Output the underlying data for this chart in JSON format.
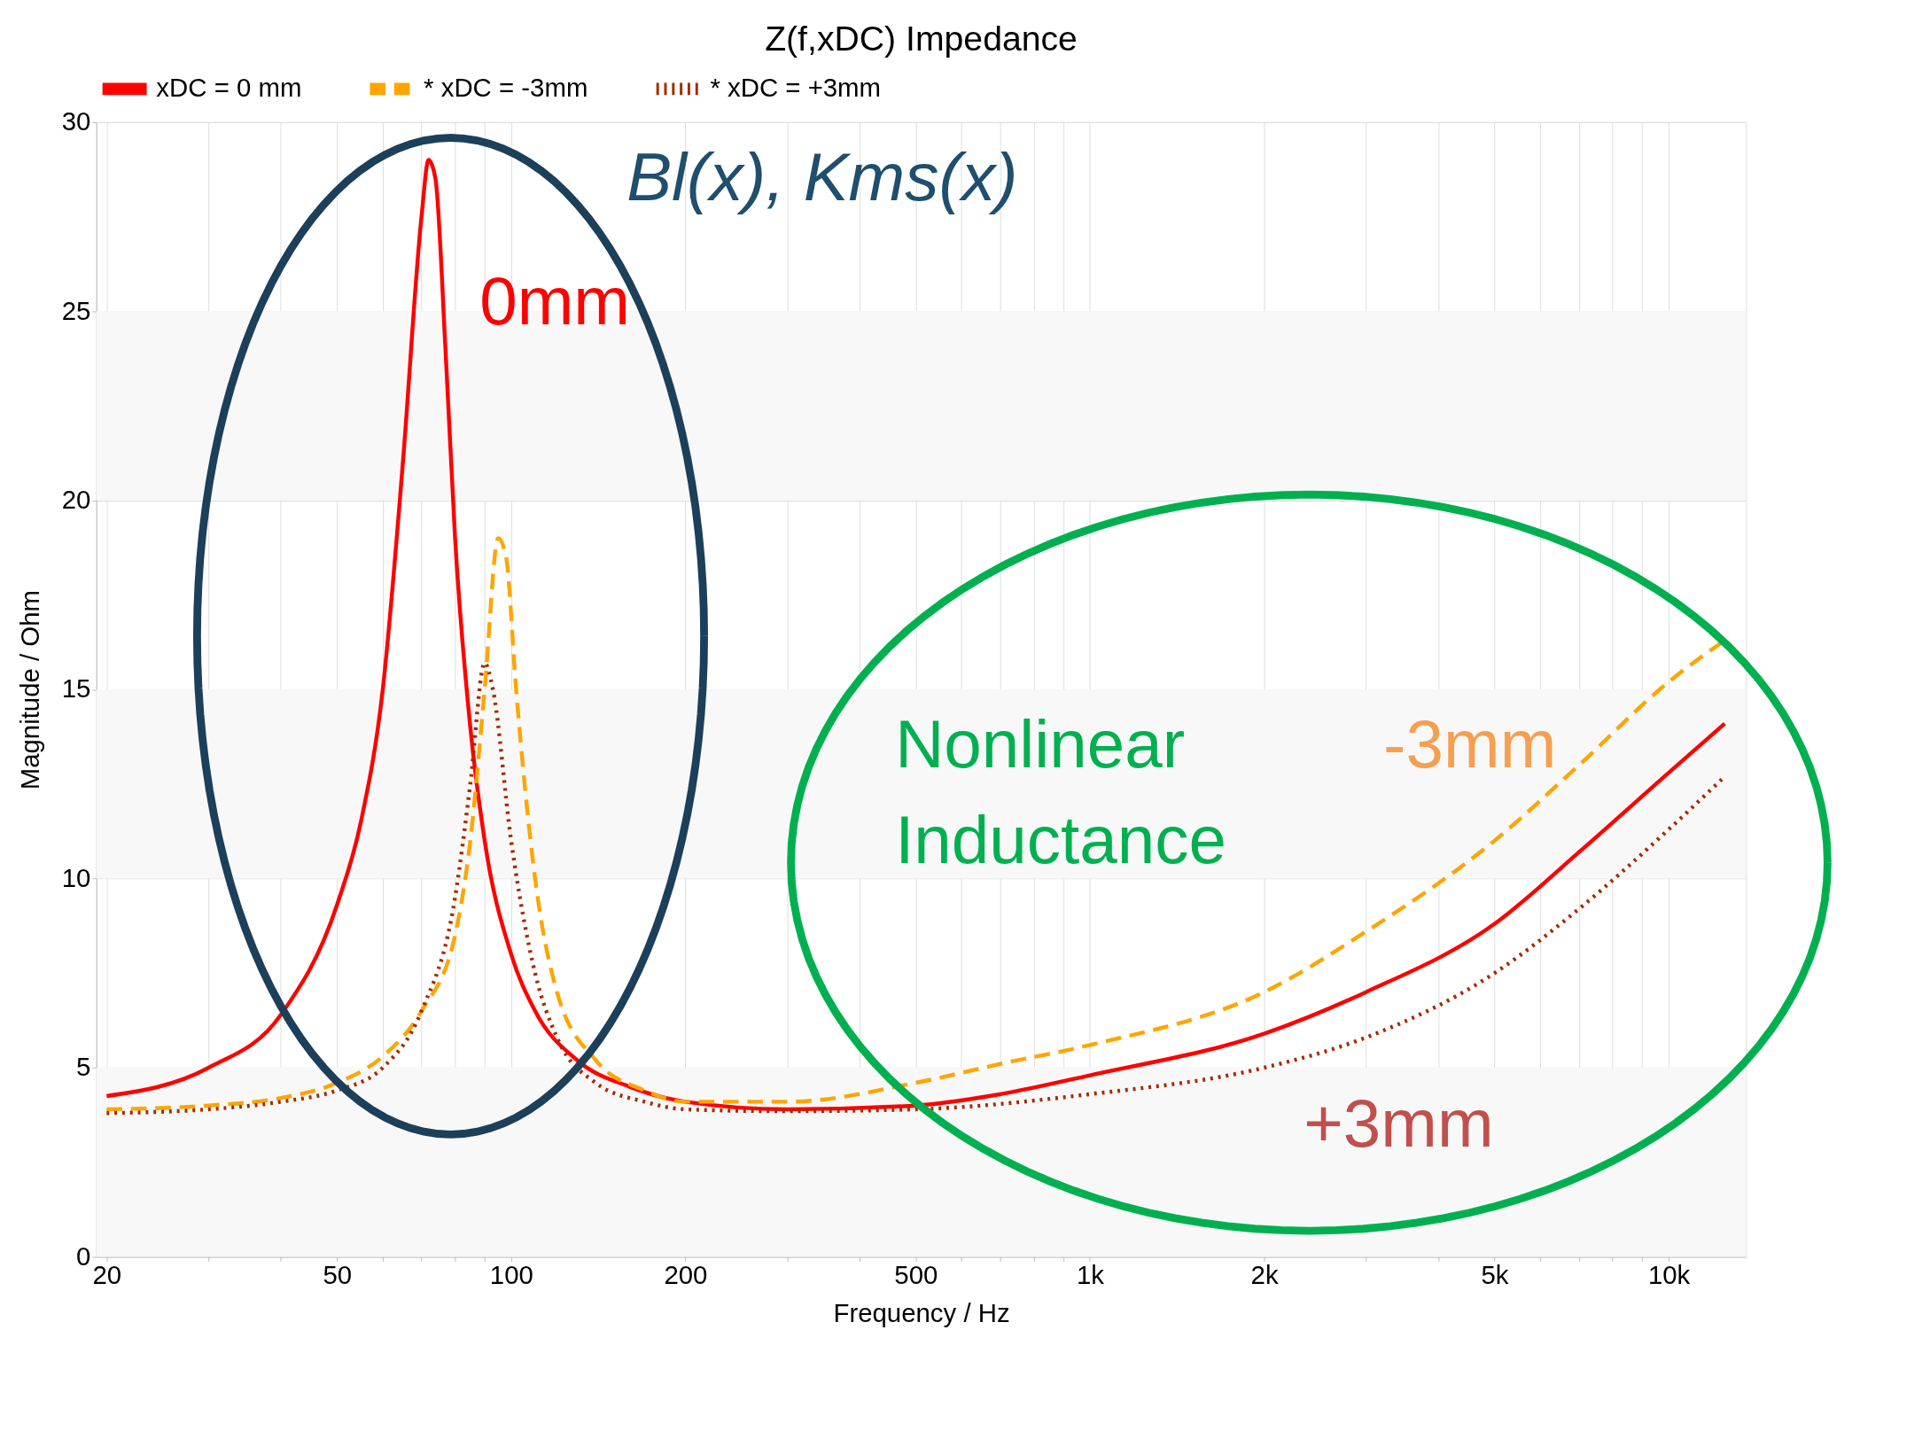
{
  "chart_data": {
    "type": "line",
    "title": "Z(f,xDC) Impedance",
    "xlabel": "Frequency / Hz",
    "ylabel": "Magnitude / Ohm",
    "log": "x",
    "grid": true,
    "legend": "top left",
    "xlim": [
      19.2,
      13600
    ],
    "ylim": [
      0,
      30
    ],
    "xticks": [
      20,
      {
        "value": 30,
        "label": null
      },
      {
        "value": 40,
        "label": null
      },
      50,
      {
        "value": 60,
        "label": null
      },
      {
        "value": 70,
        "label": null
      },
      {
        "value": 80,
        "label": null
      },
      {
        "value": 90,
        "label": null
      },
      100,
      200,
      {
        "value": 300,
        "label": null
      },
      {
        "value": 400,
        "label": null
      },
      500,
      {
        "value": 600,
        "label": null
      },
      {
        "value": 700,
        "label": null
      },
      {
        "value": 800,
        "label": null
      },
      {
        "value": 900,
        "label": null
      },
      {
        "value": 1000,
        "label": "1k"
      },
      {
        "value": 2000,
        "label": "2k"
      },
      {
        "value": 3000,
        "label": null
      },
      {
        "value": 4000,
        "label": null
      },
      {
        "value": 5000,
        "label": "5k"
      },
      {
        "value": 6000,
        "label": null
      },
      {
        "value": 7000,
        "label": null
      },
      {
        "value": 8000,
        "label": null
      },
      {
        "value": 9000,
        "label": null
      },
      {
        "value": 10000,
        "label": "10k"
      }
    ],
    "yticks": [
      0,
      5,
      10,
      15,
      20,
      25,
      30
    ],
    "bands": [
      {
        "axis": "y",
        "from": 0,
        "to": 5,
        "color": "#f8f8f8"
      },
      {
        "axis": "y",
        "from": 10,
        "to": 15,
        "color": "#f8f8f8"
      },
      {
        "axis": "y",
        "from": 20,
        "to": 25,
        "color": "#f8f8f8"
      }
    ],
    "series": [
      {
        "name": "xDC = 0 mm",
        "color": "#ff0000",
        "line_style": "solid",
        "x": [
          20,
          30,
          40,
          50,
          55,
          60,
          65,
          70,
          72,
          74,
          77,
          80,
          85,
          90,
          100,
          110,
          130,
          160,
          200,
          300,
          500,
          700,
          1000,
          2000,
          3000,
          5000,
          7000,
          10000,
          12500
        ],
        "values": [
          4.25,
          5.0,
          6.4,
          9.3,
          11.5,
          15.0,
          21,
          27.5,
          29,
          28.5,
          24,
          19,
          14,
          11,
          8,
          6.5,
          5.2,
          4.5,
          4.1,
          3.9,
          4.0,
          4.3,
          4.8,
          5.9,
          7.0,
          8.8,
          10.7,
          12.8,
          14.1
        ]
      },
      {
        "name": "* xDC = -3mm",
        "color": "#ffa500",
        "line_style": "dashed",
        "x": [
          20,
          30,
          40,
          50,
          60,
          70,
          80,
          85,
          90,
          95,
          98,
          102,
          110,
          120,
          140,
          170,
          200,
          300,
          500,
          700,
          1000,
          2000,
          3000,
          5000,
          7000,
          10000,
          12500
        ],
        "values": [
          3.9,
          4.0,
          4.2,
          4.6,
          5.3,
          6.5,
          8.5,
          11,
          15,
          19,
          18.5,
          15,
          10,
          7,
          5.2,
          4.4,
          4.1,
          4.1,
          4.6,
          5.1,
          5.6,
          7.0,
          8.6,
          11,
          13,
          15.2,
          16.3
        ]
      },
      {
        "name": "* xDC = +3mm",
        "color": "#a52a00",
        "line_style": "dotted",
        "x": [
          20,
          30,
          40,
          50,
          60,
          70,
          80,
          85,
          90,
          93,
          100,
          110,
          120,
          140,
          170,
          200,
          300,
          500,
          1000,
          2000,
          3000,
          5000,
          7000,
          10000,
          12500
        ],
        "values": [
          3.8,
          3.9,
          4.1,
          4.4,
          5.0,
          6.5,
          9.5,
          12.5,
          15.7,
          15,
          11,
          7.5,
          5.8,
          4.6,
          4.1,
          3.9,
          3.85,
          3.9,
          4.3,
          5.0,
          5.8,
          7.5,
          9.2,
          11.3,
          12.7
        ]
      }
    ],
    "annotations": [
      "Bl(x), Kms(x)",
      "0mm",
      "Nonlinear\nInductance",
      "-3mm",
      "+3mm"
    ]
  }
}
